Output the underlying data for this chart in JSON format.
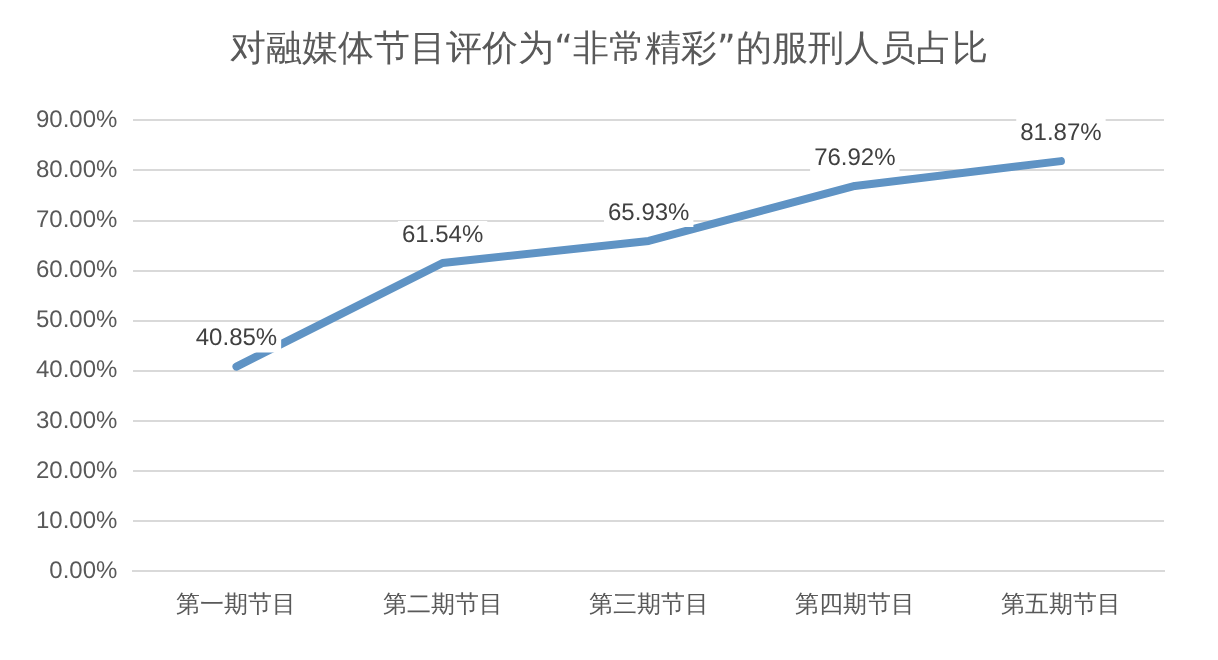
{
  "chart_data": {
    "type": "line",
    "title": "对融媒体节目评价为“非常精彩”的服刑人员占比",
    "categories": [
      "第一期节目",
      "第二期节目",
      "第三期节目",
      "第四期节目",
      "第五期节目"
    ],
    "series": [
      {
        "color": "#5f93c4",
        "values": [
          40.85,
          61.54,
          65.93,
          76.92,
          81.87
        ]
      }
    ],
    "value_labels": [
      "40.85%",
      "61.54%",
      "65.93%",
      "76.92%",
      "81.87%"
    ],
    "ylim": [
      0,
      90
    ],
    "yticks": [
      {
        "value": 0,
        "label": "0.00%"
      },
      {
        "value": 10,
        "label": "10.00%"
      },
      {
        "value": 20,
        "label": "20.00%"
      },
      {
        "value": 30,
        "label": "30.00%"
      },
      {
        "value": 40,
        "label": "40.00%"
      },
      {
        "value": 50,
        "label": "50.00%"
      },
      {
        "value": 60,
        "label": "60.00%"
      },
      {
        "value": 70,
        "label": "70.00%"
      },
      {
        "value": 80,
        "label": "80.00%"
      },
      {
        "value": 90,
        "label": "90.00%"
      }
    ],
    "grid": "y",
    "legend": false,
    "marker": "none",
    "line_style": "solid"
  }
}
